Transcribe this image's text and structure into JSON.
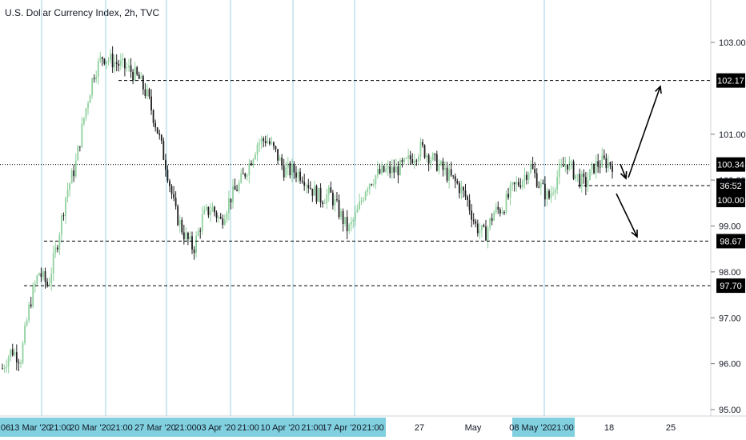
{
  "chart_data": {
    "type": "candlestick",
    "title": "U.S. Dollar Currency Index, 2h, TVC",
    "y_axis": {
      "ticks": [
        95.0,
        96.0,
        97.0,
        98.0,
        99.0,
        100.0,
        101.0,
        103.0
      ],
      "tick_labels": [
        "95.00",
        "96.00",
        "97.00",
        "98.00",
        "99.00",
        "100.00",
        "101.00",
        "103.00"
      ],
      "range": [
        94.9,
        103.9
      ]
    },
    "x_axis": {
      "labels": [
        {
          "text": "06",
          "highlight": true
        },
        {
          "text": "13 Mar '20",
          "highlight": true
        },
        {
          "text": "21:00",
          "highlight": true
        },
        {
          "text": "20 Mar '20",
          "highlight": true
        },
        {
          "text": "21:00",
          "highlight": true
        },
        {
          "text": "27 Mar '20",
          "highlight": true
        },
        {
          "text": "21:00",
          "highlight": true
        },
        {
          "text": "03 Apr '20",
          "highlight": true
        },
        {
          "text": "21:00",
          "highlight": true
        },
        {
          "text": "10 Apr '20",
          "highlight": true
        },
        {
          "text": "21:00",
          "highlight": true
        },
        {
          "text": "17 Apr '20",
          "highlight": true
        },
        {
          "text": "21:00",
          "highlight": true
        },
        {
          "text": "27",
          "highlight": false
        },
        {
          "text": "May",
          "highlight": false
        },
        {
          "text": "08 May '20",
          "highlight": true
        },
        {
          "text": "21:00",
          "highlight": true
        },
        {
          "text": "18",
          "highlight": false
        },
        {
          "text": "25",
          "highlight": false
        }
      ]
    },
    "horizontal_levels": [
      {
        "value": 102.17,
        "label": "102.17",
        "style": "dashed"
      },
      {
        "value": 100.34,
        "label": "100.34",
        "style": "dotted"
      },
      {
        "value": 99.88,
        "label": "36:52",
        "style": "dashed"
      },
      {
        "value": 98.67,
        "label": "98.67",
        "style": "dashed"
      },
      {
        "value": 97.7,
        "label": "97.70",
        "style": "dashed"
      }
    ],
    "price_marker": {
      "label": "100.00"
    },
    "trend_path": [
      95.9,
      96.3,
      96.1,
      97.3,
      98.0,
      97.7,
      98.6,
      99.7,
      100.3,
      101.4,
      102.3,
      102.7,
      102.6,
      102.5,
      102.4,
      102.2,
      101.8,
      101.1,
      100.3,
      99.3,
      98.8,
      98.5,
      99.2,
      99.4,
      99.1,
      99.6,
      99.9,
      100.3,
      100.8,
      100.9,
      100.6,
      100.2,
      100.2,
      100.1,
      99.8,
      99.6,
      99.7,
      99.3,
      98.9,
      99.3,
      99.9,
      100.1,
      100.2,
      100.2,
      100.3,
      100.5,
      100.7,
      100.5,
      100.3,
      100.1,
      99.9,
      99.6,
      99.0,
      98.8,
      99.3,
      99.4,
      99.8,
      100.0,
      100.3,
      99.9,
      99.6,
      100.1,
      100.4,
      100.1,
      99.9,
      100.3,
      100.4,
      100.35
    ],
    "arrows": [
      {
        "from": [
          785,
          222
        ],
        "to": [
          825,
          108
        ]
      },
      {
        "from": [
          775,
          205
        ],
        "to": [
          782,
          223
        ]
      },
      {
        "from": [
          770,
          242
        ],
        "to": [
          796,
          296
        ]
      }
    ]
  }
}
